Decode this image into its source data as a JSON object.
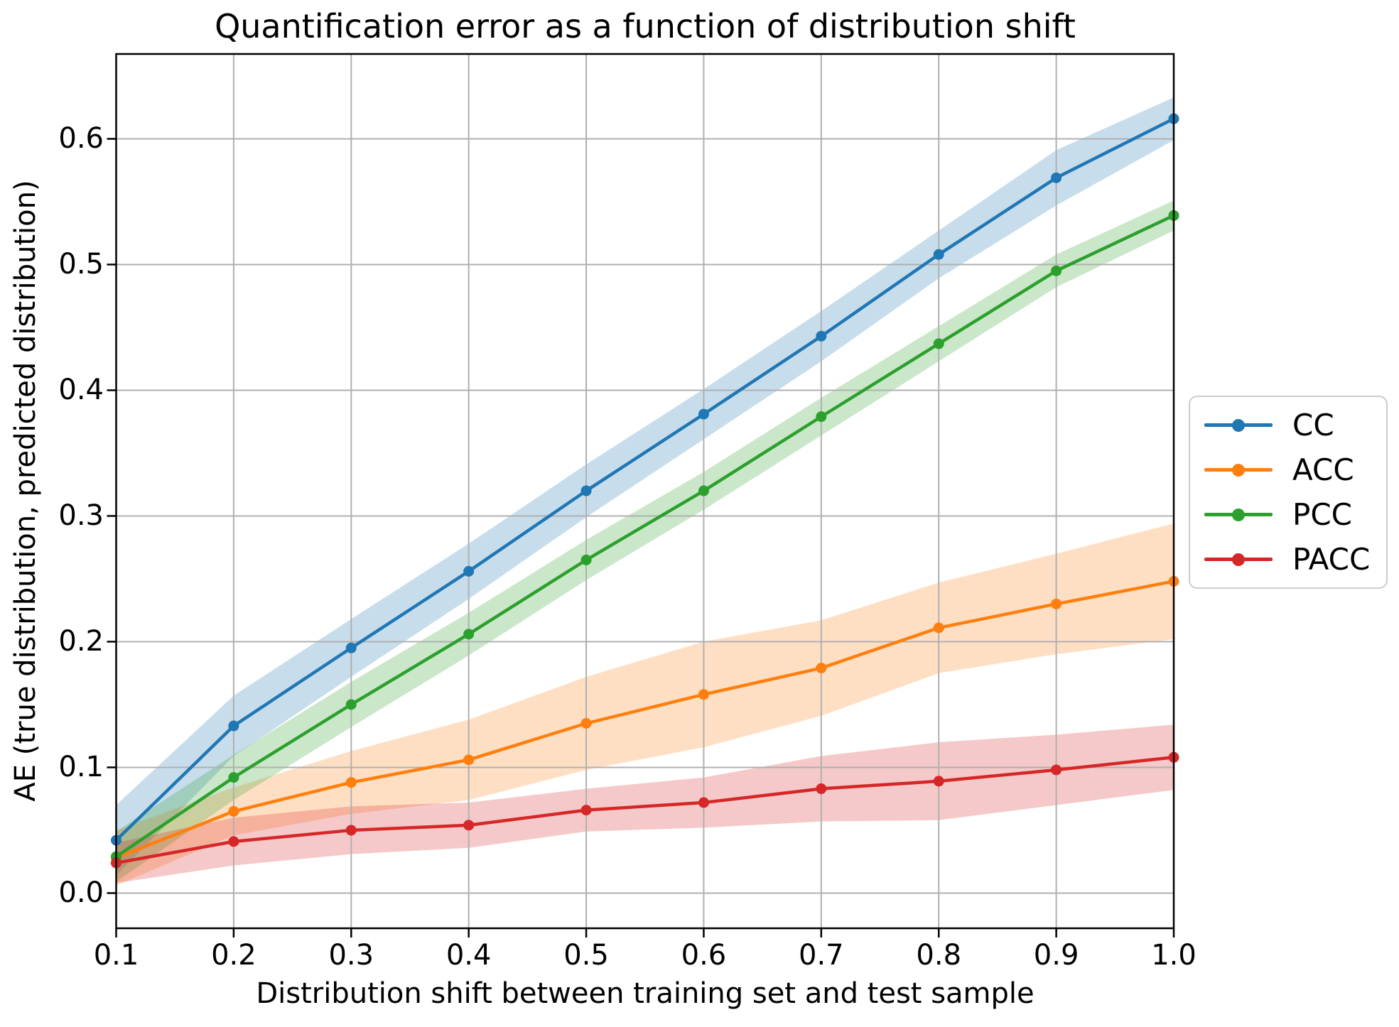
{
  "chart_data": {
    "type": "line",
    "title": "Quantification error as a function of distribution shift",
    "xlabel": "Distribution shift between training set and test sample",
    "ylabel": "AE (true distribution, predicted distribution)",
    "x": [
      0.1,
      0.2,
      0.3,
      0.4,
      0.5,
      0.6,
      0.7,
      0.8,
      0.9,
      1.0
    ],
    "x_tick_labels": [
      "0.1",
      "0.2",
      "0.3",
      "0.4",
      "0.5",
      "0.6",
      "0.7",
      "0.8",
      "0.9",
      "1.0"
    ],
    "y_ticks": [
      0.0,
      0.1,
      0.2,
      0.3,
      0.4,
      0.5,
      0.6
    ],
    "y_tick_labels": [
      "0.0",
      "0.1",
      "0.2",
      "0.3",
      "0.4",
      "0.5",
      "0.6"
    ],
    "xlim": [
      0.1,
      1.0
    ],
    "ylim": [
      -0.028,
      0.6675
    ],
    "grid": true,
    "legend_position": "center-right-outside",
    "colors": {
      "background": "#ffffff",
      "grid": "#b0b0b0",
      "spine": "#000000",
      "band_alpha": 0.25
    },
    "series": [
      {
        "name": "CC",
        "color": "#1f77b4",
        "values": [
          0.042,
          0.133,
          0.195,
          0.256,
          0.32,
          0.381,
          0.443,
          0.508,
          0.569,
          0.616
        ],
        "band_halfwidth": [
          0.028,
          0.024,
          0.023,
          0.022,
          0.021,
          0.02,
          0.02,
          0.019,
          0.022,
          0.017
        ]
      },
      {
        "name": "ACC",
        "color": "#ff7f0e",
        "values": [
          0.028,
          0.065,
          0.088,
          0.106,
          0.135,
          0.158,
          0.179,
          0.211,
          0.23,
          0.248
        ],
        "band_halfwidth": [
          0.022,
          0.019,
          0.025,
          0.032,
          0.037,
          0.042,
          0.038,
          0.036,
          0.04,
          0.046
        ]
      },
      {
        "name": "PCC",
        "color": "#2ca02c",
        "values": [
          0.029,
          0.092,
          0.15,
          0.206,
          0.265,
          0.32,
          0.379,
          0.437,
          0.495,
          0.539
        ],
        "band_halfwidth": [
          0.02,
          0.018,
          0.018,
          0.017,
          0.016,
          0.015,
          0.015,
          0.014,
          0.013,
          0.012
        ]
      },
      {
        "name": "PACC",
        "color": "#d62728",
        "values": [
          0.024,
          0.041,
          0.05,
          0.054,
          0.066,
          0.072,
          0.083,
          0.089,
          0.098,
          0.108
        ],
        "band_halfwidth": [
          0.016,
          0.019,
          0.019,
          0.018,
          0.017,
          0.02,
          0.026,
          0.031,
          0.028,
          0.026
        ]
      }
    ]
  }
}
